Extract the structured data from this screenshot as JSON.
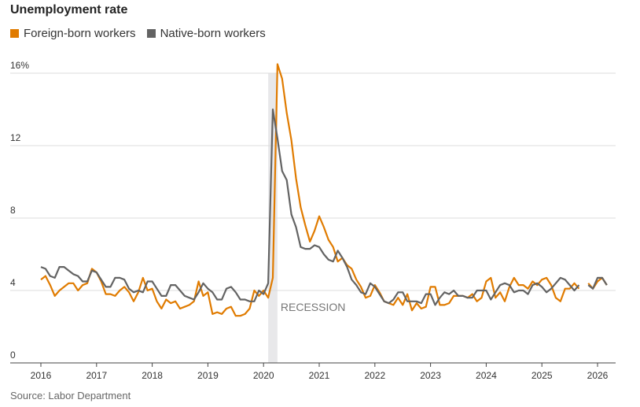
{
  "chart_data": {
    "type": "line",
    "title": "Unemployment rate",
    "source": "Source: Labor Department",
    "ylim": [
      0,
      16
    ],
    "yticks": [
      0,
      4,
      8,
      12,
      16
    ],
    "ytick_labels": [
      "0",
      "4",
      "8",
      "12",
      "16%"
    ],
    "xlim": [
      2016,
      2026.3
    ],
    "xticks": [
      2016,
      2017,
      2018,
      2019,
      2020,
      2021,
      2022,
      2023,
      2024,
      2025,
      2026
    ],
    "xtick_labels": [
      "2016",
      "2017",
      "2018",
      "2019",
      "2020",
      "2021",
      "2022",
      "2023",
      "2024",
      "2025",
      "2026"
    ],
    "start": "2016-01",
    "frequency": "monthly",
    "annotation": {
      "label": "RECESSION",
      "from": 2020.083,
      "to": 2020.25
    },
    "series": [
      {
        "name": "Foreign-born workers",
        "color": "#e07b00",
        "values": [
          4.6,
          4.8,
          4.3,
          3.7,
          4.0,
          4.2,
          4.4,
          4.4,
          4.0,
          4.3,
          4.4,
          5.2,
          5.0,
          4.5,
          3.8,
          3.8,
          3.7,
          4.0,
          4.2,
          3.9,
          3.4,
          3.9,
          4.7,
          4.0,
          4.1,
          3.4,
          3.0,
          3.5,
          3.3,
          3.4,
          3.0,
          3.1,
          3.2,
          3.4,
          4.5,
          3.7,
          3.9,
          2.7,
          2.8,
          2.7,
          3.0,
          3.1,
          2.6,
          2.6,
          2.7,
          3.0,
          4.0,
          3.7,
          4.0,
          3.6,
          4.7,
          16.5,
          15.7,
          13.8,
          12.3,
          10.2,
          8.6,
          7.6,
          6.7,
          7.3,
          8.1,
          7.5,
          6.8,
          6.4,
          5.6,
          5.8,
          5.4,
          5.2,
          4.6,
          4.2,
          3.6,
          3.7,
          4.3,
          3.9,
          3.4,
          3.3,
          3.2,
          3.6,
          3.2,
          3.8,
          2.9,
          3.3,
          3.0,
          3.1,
          4.2,
          4.2,
          3.2,
          3.2,
          3.3,
          3.7,
          3.7,
          3.7,
          3.6,
          3.8,
          3.4,
          3.6,
          4.5,
          4.7,
          3.6,
          3.9,
          3.4,
          4.2,
          4.7,
          4.3,
          4.3,
          4.1,
          4.5,
          4.3,
          4.6,
          4.7,
          4.3,
          3.6,
          3.4,
          4.1,
          4.1,
          4.4,
          4.1,
          null,
          4.4,
          4.1,
          4.5,
          4.7,
          4.3
        ]
      },
      {
        "name": "Native-born workers",
        "color": "#636363",
        "values": [
          5.3,
          5.2,
          4.8,
          4.7,
          5.3,
          5.3,
          5.1,
          4.9,
          4.8,
          4.5,
          4.5,
          5.1,
          5.0,
          4.6,
          4.2,
          4.2,
          4.7,
          4.7,
          4.6,
          4.1,
          3.9,
          4.0,
          3.9,
          4.5,
          4.5,
          4.1,
          3.7,
          3.7,
          4.3,
          4.3,
          4.0,
          3.7,
          3.6,
          3.5,
          3.9,
          4.4,
          4.1,
          3.9,
          3.5,
          3.5,
          4.1,
          4.2,
          3.9,
          3.5,
          3.5,
          3.4,
          3.4,
          4.0,
          3.8,
          4.4,
          14.0,
          12.4,
          10.6,
          10.1,
          8.2,
          7.5,
          6.4,
          6.3,
          6.3,
          6.5,
          6.4,
          6.0,
          5.7,
          5.6,
          6.2,
          5.8,
          5.3,
          4.6,
          4.3,
          3.9,
          3.8,
          4.4,
          4.2,
          3.8,
          3.4,
          3.3,
          3.5,
          3.9,
          3.9,
          3.4,
          3.4,
          3.4,
          3.3,
          3.8,
          3.8,
          3.2,
          3.6,
          3.9,
          3.8,
          4.0,
          3.7,
          3.7,
          3.6,
          3.6,
          4.0,
          4.0,
          4.0,
          3.5,
          3.9,
          4.3,
          4.4,
          4.3,
          3.9,
          4.0,
          4.0,
          3.8,
          4.3,
          4.4,
          4.2,
          3.9,
          4.1,
          4.4,
          4.7,
          4.6,
          4.3,
          4.0,
          4.3,
          null,
          4.3,
          4.1,
          4.7,
          4.7,
          4.3
        ]
      }
    ]
  }
}
